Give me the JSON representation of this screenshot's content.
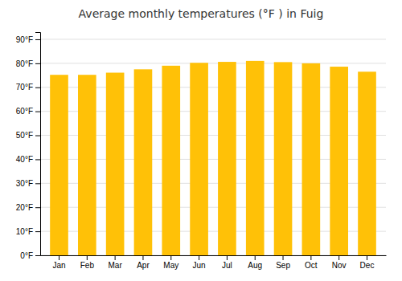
{
  "chart_data": {
    "type": "bar",
    "title": "Average monthly temperatures (°F ) in Fuig",
    "categories": [
      "Jan",
      "Feb",
      "Mar",
      "Apr",
      "May",
      "Jun",
      "Jul",
      "Aug",
      "Sep",
      "Oct",
      "Nov",
      "Dec"
    ],
    "values": [
      75.2,
      75.2,
      76.1,
      77.5,
      79.0,
      80.2,
      80.6,
      81.0,
      80.5,
      80.0,
      78.6,
      76.5
    ],
    "color": "#FFC107",
    "ylim": [
      0,
      93
    ],
    "yticks": [
      {
        "value": 0,
        "label": "0°F"
      },
      {
        "value": 10,
        "label": "10°F"
      },
      {
        "value": 20,
        "label": "20°F"
      },
      {
        "value": 30,
        "label": "30°F"
      },
      {
        "value": 40,
        "label": "40°F"
      },
      {
        "value": 50,
        "label": "50°F"
      },
      {
        "value": 60,
        "label": "60°F"
      },
      {
        "value": 70,
        "label": "70°F"
      },
      {
        "value": 80,
        "label": "80°F"
      },
      {
        "value": 90,
        "label": "90°F"
      }
    ],
    "grid": true
  }
}
